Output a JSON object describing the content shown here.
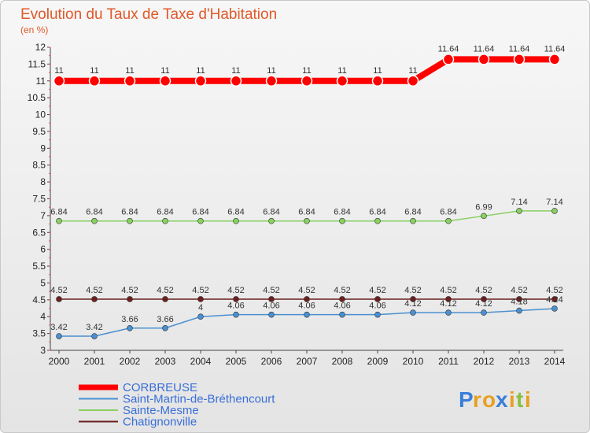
{
  "chart_data": {
    "type": "line",
    "title": "Evolution du Taux de Taxe d'Habitation",
    "ylabel": "(en %)",
    "xlabel": "",
    "ylim": [
      3,
      12
    ],
    "yticks": [
      "3",
      "3.5",
      "4",
      "4.5",
      "5",
      "5.5",
      "6",
      "6.5",
      "7",
      "7.5",
      "8",
      "8.5",
      "9",
      "9.5",
      "10",
      "10.5",
      "11",
      "11.5",
      "12"
    ],
    "categories": [
      "2000",
      "2001",
      "2002",
      "2003",
      "2004",
      "2005",
      "2006",
      "2007",
      "2008",
      "2009",
      "2010",
      "2011",
      "2012",
      "2013",
      "2014"
    ],
    "grid": false,
    "legend": "bottom-left",
    "series": [
      {
        "name": "CORBREUSE",
        "color": "#ff0000",
        "values": [
          11,
          11,
          11,
          11,
          11,
          11,
          11,
          11,
          11,
          11,
          11,
          11.64,
          11.64,
          11.64,
          11.64
        ],
        "labels": [
          "11",
          "11",
          "11",
          "11",
          "11",
          "11",
          "11",
          "11",
          "11",
          "11",
          "11",
          "11.64",
          "11.64",
          "11.64",
          "11.64"
        ]
      },
      {
        "name": "Saint-Martin-de-Bréthencourt",
        "color": "#4a90d0",
        "values": [
          3.42,
          3.42,
          3.66,
          3.66,
          4,
          4.06,
          4.06,
          4.06,
          4.06,
          4.06,
          4.12,
          4.12,
          4.12,
          4.18,
          4.24
        ],
        "labels": [
          "3.42",
          "3.42",
          "3.66",
          "3.66",
          "4",
          "4.06",
          "4.06",
          "4.06",
          "4.06",
          "4.06",
          "4.12",
          "4.12",
          "4.12",
          "4.18",
          "4.24"
        ]
      },
      {
        "name": "Sainte-Mesme",
        "color": "#88d060",
        "values": [
          6.84,
          6.84,
          6.84,
          6.84,
          6.84,
          6.84,
          6.84,
          6.84,
          6.84,
          6.84,
          6.84,
          6.84,
          6.99,
          7.14,
          7.14
        ],
        "labels": [
          "6.84",
          "6.84",
          "6.84",
          "6.84",
          "6.84",
          "6.84",
          "6.84",
          "6.84",
          "6.84",
          "6.84",
          "6.84",
          "6.84",
          "6.99",
          "7.14",
          "7.14"
        ]
      },
      {
        "name": "Chatignonville",
        "color": "#6b1f1f",
        "values": [
          4.52,
          4.52,
          4.52,
          4.52,
          4.52,
          4.52,
          4.52,
          4.52,
          4.52,
          4.52,
          4.52,
          4.52,
          4.52,
          4.52,
          4.52
        ],
        "labels": [
          "4.52",
          "4.52",
          "4.52",
          "4.52",
          "4.52",
          "4.52",
          "4.52",
          "4.52",
          "4.52",
          "4.52",
          "4.52",
          "4.52",
          "4.52",
          "4.52",
          "4.52"
        ]
      }
    ]
  },
  "logo": {
    "text": "Proxiti",
    "letters": [
      "P",
      "r",
      "o",
      "x",
      "i",
      "t",
      "i"
    ],
    "colors": [
      "#3a7fd8",
      "#e8a020",
      "#e8a020",
      "#3a7fd8",
      "#e8a020",
      "#88c040",
      "#e8a020"
    ]
  }
}
